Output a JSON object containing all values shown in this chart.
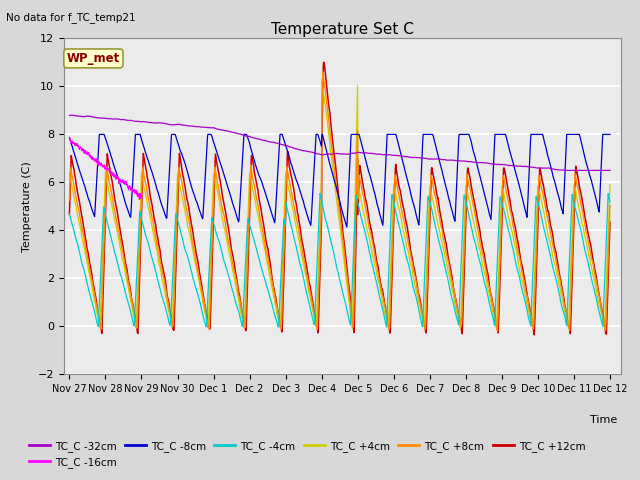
{
  "title": "Temperature Set C",
  "subtitle": "No data for f_TC_temp21",
  "xlabel": "Time",
  "ylabel": "Temperature (C)",
  "ylim": [
    -2,
    12
  ],
  "yticks": [
    -2,
    0,
    2,
    4,
    6,
    8,
    10,
    12
  ],
  "xlim_start": -0.15,
  "xlim_end": 15.3,
  "xtick_labels": [
    "Nov 27",
    "Nov 28",
    "Nov 29",
    "Nov 30",
    "Dec 1",
    "Dec 2",
    "Dec 3",
    "Dec 4",
    "Dec 5",
    "Dec 6",
    "Dec 7",
    "Dec 8",
    "Dec 9",
    "Dec 10",
    "Dec 11",
    "Dec 12"
  ],
  "xtick_positions": [
    0,
    1,
    2,
    3,
    4,
    5,
    6,
    7,
    8,
    9,
    10,
    11,
    12,
    13,
    14,
    15
  ],
  "wp_met_label": "WP_met",
  "legend_entries": [
    "TC_C -32cm",
    "TC_C -16cm",
    "TC_C -8cm",
    "TC_C -4cm",
    "TC_C +4cm",
    "TC_C +8cm",
    "TC_C +12cm"
  ],
  "legend_colors": [
    "#aa00cc",
    "#ff00ff",
    "#0000cc",
    "#00cccc",
    "#cccc00",
    "#ff8800",
    "#cc0000"
  ],
  "background_color": "#d8d8d8",
  "plot_bg_color": "#ebebeb",
  "grid_color": "#ffffff",
  "title_fontsize": 11,
  "label_fontsize": 8,
  "tick_fontsize": 8
}
